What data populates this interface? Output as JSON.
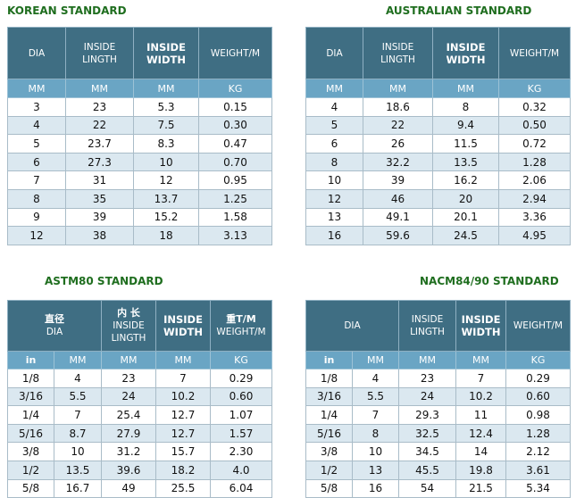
{
  "korean": {
    "title": "KOREAN STANDARD",
    "headers": [
      [
        "DIA"
      ],
      [
        "INSIDE",
        "LINGTH"
      ],
      [
        "INSIDE",
        "WIDTH"
      ],
      [
        "WEIGHT/M"
      ]
    ],
    "units": [
      "MM",
      "MM",
      "MM",
      "KG"
    ],
    "rows": [
      [
        "3",
        "23",
        "5.3",
        "0.15"
      ],
      [
        "4",
        "22",
        "7.5",
        "0.30"
      ],
      [
        "5",
        "23.7",
        "8.3",
        "0.47"
      ],
      [
        "6",
        "27.3",
        "10",
        "0.70"
      ],
      [
        "7",
        "31",
        "12",
        "0.95"
      ],
      [
        "8",
        "35",
        "13.7",
        "1.25"
      ],
      [
        "9",
        "39",
        "15.2",
        "1.58"
      ],
      [
        "12",
        "38",
        "18",
        "3.13"
      ]
    ]
  },
  "australian": {
    "title": "AUSTRALIAN STANDARD",
    "headers": [
      [
        "DIA"
      ],
      [
        "INSIDE",
        "LINGTH"
      ],
      [
        "INSIDE",
        "WIDTH"
      ],
      [
        "WEIGHT/M"
      ]
    ],
    "units": [
      "MM",
      "MM",
      "MM",
      "KG"
    ],
    "rows": [
      [
        "4",
        "18.6",
        "8",
        "0.32"
      ],
      [
        "5",
        "22",
        "9.4",
        "0.50"
      ],
      [
        "6",
        "26",
        "11.5",
        "0.72"
      ],
      [
        "8",
        "32.2",
        "13.5",
        "1.28"
      ],
      [
        "10",
        "39",
        "16.2",
        "2.06"
      ],
      [
        "12",
        "46",
        "20",
        "2.94"
      ],
      [
        "13",
        "49.1",
        "20.1",
        "3.36"
      ],
      [
        "16",
        "59.6",
        "24.5",
        "4.95"
      ]
    ]
  },
  "astm": {
    "title": "ASTM80 STANDARD",
    "headers": [
      [
        "直径",
        "DIA"
      ],
      [
        "内 长",
        "INSIDE",
        "LINGTH"
      ],
      [
        "INSIDE",
        "WIDTH"
      ],
      [
        "重T/M",
        "WEIGHT/M"
      ]
    ],
    "units": [
      "in",
      "MM",
      "MM",
      "MM",
      "KG"
    ],
    "rows": [
      [
        "1/8",
        "4",
        "23",
        "7",
        "0.29"
      ],
      [
        "3/16",
        "5.5",
        "24",
        "10.2",
        "0.60"
      ],
      [
        "1/4",
        "7",
        "25.4",
        "12.7",
        "1.07"
      ],
      [
        "5/16",
        "8.7",
        "27.9",
        "12.7",
        "1.57"
      ],
      [
        "3/8",
        "10",
        "31.2",
        "15.7",
        "2.30"
      ],
      [
        "1/2",
        "13.5",
        "39.6",
        "18.2",
        "4.0"
      ],
      [
        "5/8",
        "16.7",
        "49",
        "25.5",
        "6.04"
      ]
    ]
  },
  "nacm": {
    "title": "NACM84/90 STANDARD",
    "headers": [
      [
        "DIA"
      ],
      [
        "INSIDE",
        "LINGTH"
      ],
      [
        "INSIDE",
        "WIDTH"
      ],
      [
        "WEIGHT/M"
      ]
    ],
    "units": [
      "in",
      "MM",
      "MM",
      "MM",
      "KG"
    ],
    "rows": [
      [
        "1/8",
        "4",
        "23",
        "7",
        "0.29"
      ],
      [
        "3/16",
        "5.5",
        "24",
        "10.2",
        "0.60"
      ],
      [
        "1/4",
        "7",
        "29.3",
        "11",
        "0.98"
      ],
      [
        "5/16",
        "8",
        "32.5",
        "12.4",
        "1.28"
      ],
      [
        "3/8",
        "10",
        "34.5",
        "14",
        "2.12"
      ],
      [
        "1/2",
        "13",
        "45.5",
        "19.8",
        "3.61"
      ],
      [
        "5/8",
        "16",
        "54",
        "21.5",
        "5.34"
      ]
    ]
  }
}
